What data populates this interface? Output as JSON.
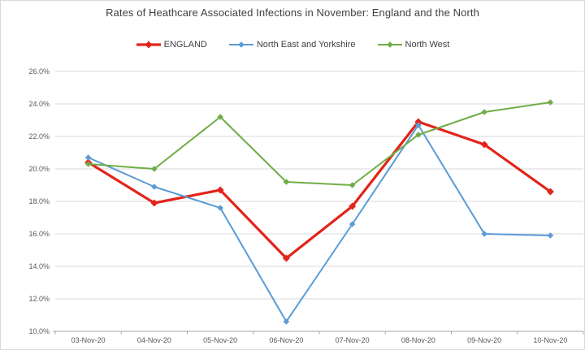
{
  "chart_data": {
    "type": "line",
    "title": "Rates of Heathcare Associated Infections in November: England and the North",
    "categories": [
      "03-Nov-20",
      "04-Nov-20",
      "05-Nov-20",
      "06-Nov-20",
      "07-Nov-20",
      "08-Nov-20",
      "09-Nov-20",
      "10-Nov-20"
    ],
    "series": [
      {
        "name": "ENGLAND",
        "color": "#e2241b",
        "line_width": 3.2,
        "marker": "diamond",
        "marker_size": 4.5,
        "values": [
          20.4,
          17.9,
          18.7,
          14.5,
          17.7,
          22.9,
          21.5,
          18.6
        ]
      },
      {
        "name": "North East and Yorkshire",
        "color": "#5b9bd5",
        "line_width": 2,
        "marker": "diamond",
        "marker_size": 3.8,
        "values": [
          20.7,
          18.9,
          17.6,
          10.6,
          16.6,
          22.7,
          16.0,
          15.9
        ]
      },
      {
        "name": "North West",
        "color": "#70ad47",
        "line_width": 2,
        "marker": "diamond",
        "marker_size": 3.8,
        "values": [
          20.3,
          20.0,
          23.2,
          19.2,
          19.0,
          22.1,
          23.5,
          24.1
        ]
      }
    ],
    "ylim": [
      10,
      26
    ],
    "ytick_step": 2,
    "ytick_labels": [
      "10.0%",
      "12.0%",
      "14.0%",
      "16.0%",
      "18.0%",
      "20.0%",
      "22.0%",
      "24.0%",
      "26.0%"
    ],
    "grid": "horizontal",
    "legend_position": "top"
  },
  "colors": {
    "gridline": "#d9d9d9",
    "axis_line": "#a6a6a6",
    "tick": "#a6a6a6",
    "axis_text": "#595959",
    "title_text": "#404040",
    "frame_border": "#d9d9d9",
    "background": "#ffffff"
  }
}
